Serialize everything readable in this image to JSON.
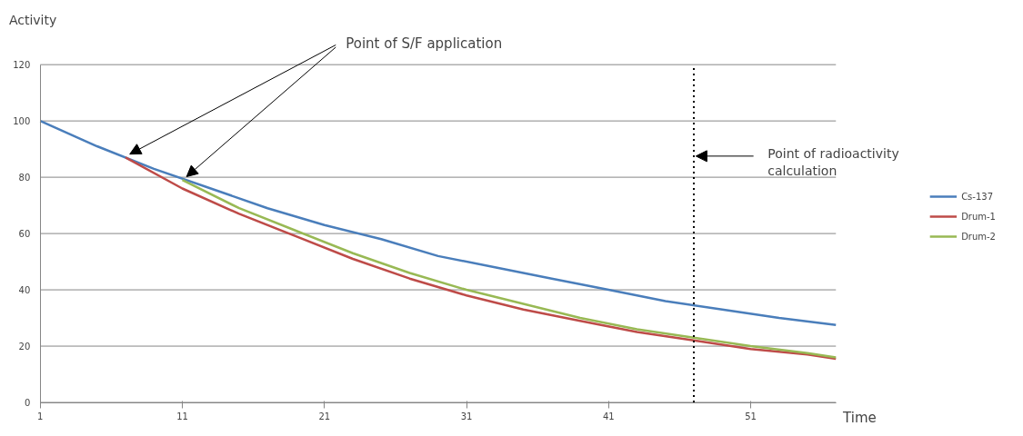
{
  "chart_data": {
    "type": "line",
    "xlabel": "Time",
    "ylabel": "Activity",
    "xlim": [
      1,
      57
    ],
    "xticks": [
      1,
      11,
      21,
      31,
      41,
      51
    ],
    "ylim": [
      0,
      120
    ],
    "yticks": [
      0,
      20,
      40,
      60,
      80,
      100,
      120
    ],
    "grid": "y",
    "legend": "right",
    "line_style": "solid",
    "series": [
      {
        "name": "Cs-137",
        "color": "#4a7ebb",
        "x": [
          1,
          5,
          9,
          13,
          17,
          21,
          25,
          29,
          33,
          37,
          41,
          45,
          49,
          53,
          57
        ],
        "values": [
          100,
          91,
          83,
          76,
          69,
          63,
          58,
          52,
          48,
          44,
          40,
          36,
          33,
          30,
          27.5
        ]
      },
      {
        "name": "Drum-1",
        "color": "#be4b48",
        "x": [
          7,
          11,
          15,
          19,
          23,
          27,
          31,
          35,
          39,
          43,
          47,
          51,
          55,
          57
        ],
        "values": [
          87,
          76,
          67,
          59,
          51,
          44,
          38,
          33,
          29,
          25,
          22,
          19,
          17,
          15.5
        ]
      },
      {
        "name": "Drum-2",
        "color": "#98b954",
        "x": [
          11,
          15,
          19,
          23,
          27,
          31,
          35,
          39,
          43,
          47,
          51,
          55,
          57
        ],
        "values": [
          79,
          69,
          61,
          53,
          46,
          40,
          35,
          30,
          26,
          23,
          20,
          17.5,
          16
        ]
      }
    ],
    "ref_lines": [
      {
        "axis": "x",
        "value": 47,
        "label": "Point of radioactivity\ncalculation",
        "color": "#000000",
        "line_style": "dotted"
      }
    ],
    "annotations": [
      {
        "text": "Point of S/F application",
        "x": 7,
        "y": 87
      }
    ]
  }
}
